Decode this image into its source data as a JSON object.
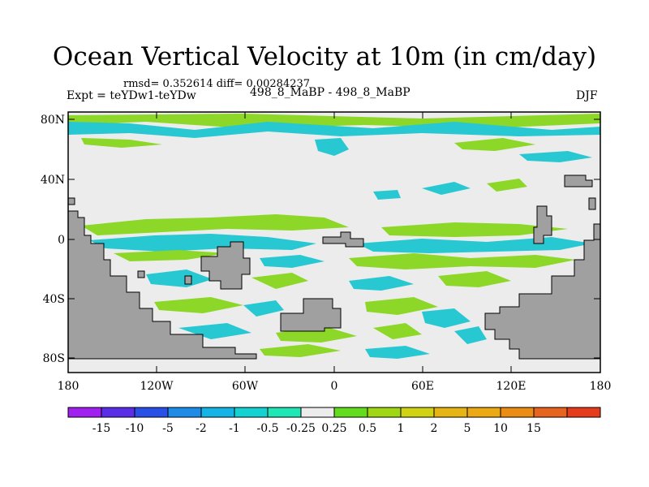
{
  "title": "Ocean Vertical Velocity at 10m (in cm/day)",
  "stats": {
    "rmsd_label": "rmsd=",
    "rmsd_value": "0.352614",
    "diff_label": "diff=",
    "diff_value": "0.00284237",
    "text": "rmsd= 0.352614 diff= 0.00284237"
  },
  "experiment": "Expt = teYDw1-teYDw",
  "center_label": "498_8_MaBP - 498_8_MaBP",
  "season": "DJF",
  "axes": {
    "lat_ticks": [
      "80N",
      "40N",
      "0",
      "40S",
      "80S"
    ],
    "lon_ticks": [
      "180",
      "120W",
      "60W",
      "0",
      "60E",
      "120E",
      "180"
    ]
  },
  "colorbar": {
    "labels": [
      "-15",
      "-10",
      "-5",
      "-2",
      "-1",
      "-0.5",
      "-0.25",
      "0.25",
      "0.5",
      "1",
      "2",
      "5",
      "10",
      "15"
    ],
    "colors": [
      "#a020f0",
      "#5a2de6",
      "#2850e6",
      "#1e8ce6",
      "#14b4e6",
      "#14d2d2",
      "#1ee6b4",
      "#ececec",
      "#64dc1e",
      "#a0d714",
      "#d2d214",
      "#e6b414",
      "#ebaa14",
      "#eb8c14",
      "#e6641e",
      "#e63c1e"
    ]
  },
  "colors": {
    "land": "#a0a0a0",
    "near_zero": "#ececec",
    "positive": "#8cd728",
    "negative": "#28c8d2"
  }
}
